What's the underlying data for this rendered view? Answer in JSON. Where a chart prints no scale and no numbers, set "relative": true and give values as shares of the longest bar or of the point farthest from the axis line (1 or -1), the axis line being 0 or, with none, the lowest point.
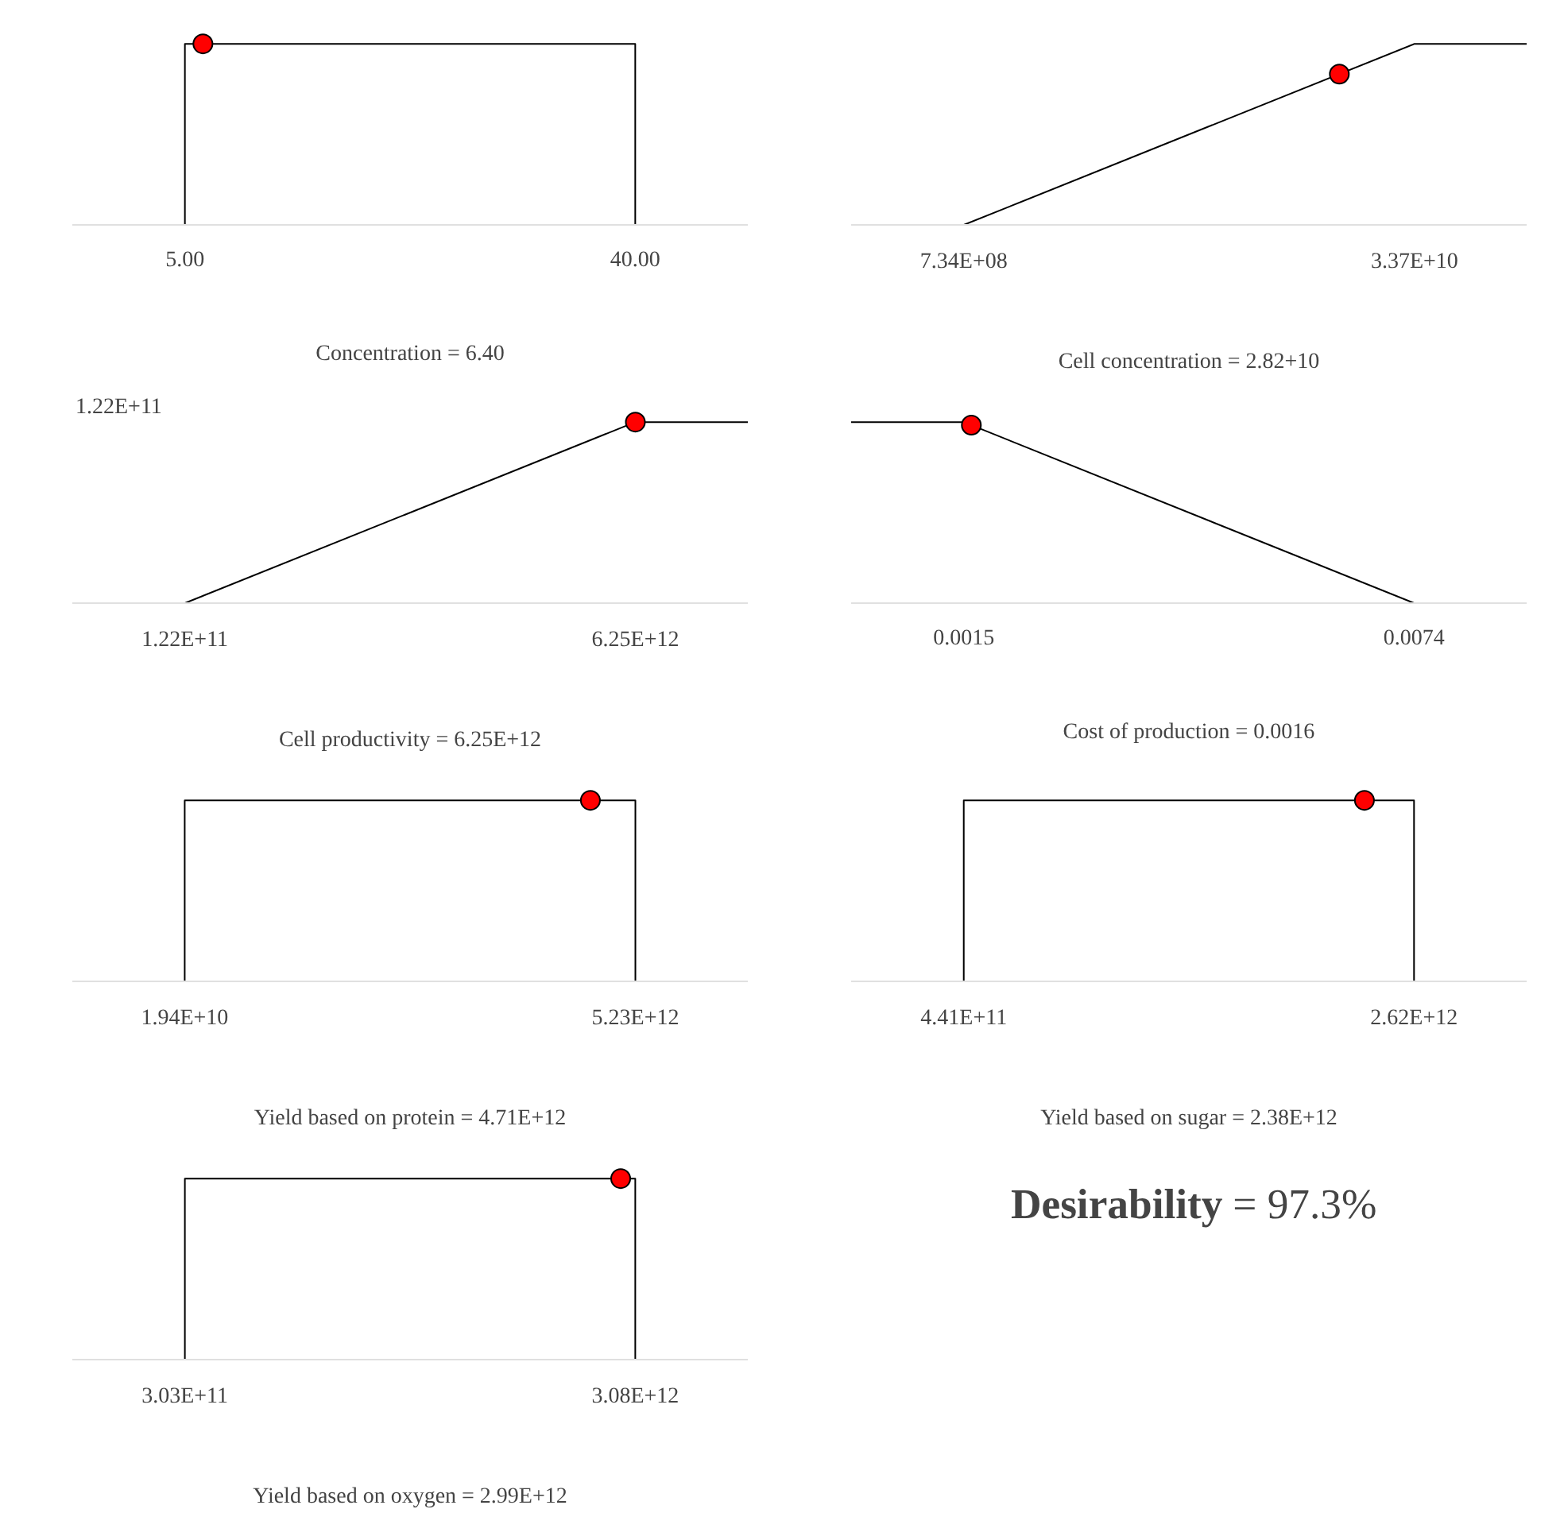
{
  "chart_data": [
    {
      "type": "line",
      "relative": true,
      "tick_labels": "x",
      "xlabel": "Concentration = 6.40",
      "xlim": [
        -3.75,
        48.75
      ],
      "xticks": [
        {
          "value": 5,
          "label": "5.00"
        },
        {
          "value": 40,
          "label": "40.00"
        }
      ],
      "series": [
        {
          "type": "line",
          "color": "#000000",
          "x": [
            -3.75,
            5,
            5,
            40,
            40,
            48.75
          ],
          "values": [
            0,
            0,
            1,
            1,
            0,
            0
          ]
        },
        {
          "type": "scatter",
          "marker": "circle",
          "color": "#ff0000",
          "x": [
            6.4
          ],
          "values": [
            1
          ]
        }
      ]
    },
    {
      "type": "line",
      "relative": true,
      "tick_labels": "x",
      "xlabel": "Cell concentration = 2.82+10",
      "xlim": [
        -7510000000.0,
        41900000000.0
      ],
      "xticks": [
        {
          "value": 734000000.0,
          "label": "7.34E+08"
        },
        {
          "value": 33700000000.0,
          "label": "3.37E+10"
        }
      ],
      "series": [
        {
          "type": "line",
          "color": "#000000",
          "x": [
            -7510000000.0,
            734000000.0,
            33700000000.0,
            41900000000.0
          ],
          "values": [
            0,
            0,
            1,
            1
          ]
        },
        {
          "type": "scatter",
          "marker": "circle",
          "color": "#ff0000",
          "x": [
            28200000000.0
          ],
          "values": [
            0.833
          ]
        }
      ]
    },
    {
      "type": "line",
      "relative": true,
      "tick_labels": "x",
      "xlabel": "Cell productivity = 6.25E+12",
      "annotations": [
        "1.22E+11"
      ],
      "xlim": [
        -1410000000000.0,
        7780000000000.0
      ],
      "xticks": [
        {
          "value": 122000000000.0,
          "label": "1.22E+11"
        },
        {
          "value": 6250000000000.0,
          "label": "6.25E+12"
        }
      ],
      "series": [
        {
          "type": "line",
          "color": "#000000",
          "x": [
            -1410000000000.0,
            122000000000.0,
            6250000000000.0,
            7780000000000.0
          ],
          "values": [
            0,
            0,
            1,
            1
          ]
        },
        {
          "type": "scatter",
          "marker": "circle",
          "color": "#ff0000",
          "x": [
            6250000000000.0
          ],
          "values": [
            1
          ]
        }
      ]
    },
    {
      "type": "line",
      "relative": true,
      "tick_labels": "x",
      "xlabel": "Cost of production = 0.0016",
      "xlim": [
        2.5e-05,
        0.008875
      ],
      "xticks": [
        {
          "value": 0.0015,
          "label": "0.0015"
        },
        {
          "value": 0.0074,
          "label": "0.0074"
        }
      ],
      "series": [
        {
          "type": "line",
          "color": "#000000",
          "x": [
            2.5e-05,
            0.0015,
            0.0074,
            0.008875
          ],
          "values": [
            1,
            1,
            0,
            0
          ]
        },
        {
          "type": "scatter",
          "marker": "circle",
          "color": "#ff0000",
          "x": [
            0.0016
          ],
          "values": [
            0.983
          ]
        }
      ]
    },
    {
      "type": "line",
      "relative": true,
      "tick_labels": "x",
      "xlabel": "Yield based on protein = 4.71E+12",
      "xlim": [
        -1280000000000.0,
        6530000000000.0
      ],
      "xticks": [
        {
          "value": 19400000000.0,
          "label": "1.94E+10"
        },
        {
          "value": 5230000000000.0,
          "label": "5.23E+12"
        }
      ],
      "series": [
        {
          "type": "line",
          "color": "#000000",
          "x": [
            -1280000000000.0,
            19400000000.0,
            19400000000.0,
            5230000000000.0,
            5230000000000.0,
            6530000000000.0
          ],
          "values": [
            0,
            0,
            1,
            1,
            0,
            0
          ]
        },
        {
          "type": "scatter",
          "marker": "circle",
          "color": "#ff0000",
          "x": [
            4710000000000.0
          ],
          "values": [
            1
          ]
        }
      ]
    },
    {
      "type": "line",
      "relative": true,
      "tick_labels": "x",
      "xlabel": "Yield based on sugar = 2.38E+12",
      "xlim": [
        -104000000000.0,
        3165000000000.0
      ],
      "xticks": [
        {
          "value": 441000000000.0,
          "label": "4.41E+11"
        },
        {
          "value": 2620000000000.0,
          "label": "2.62E+12"
        }
      ],
      "series": [
        {
          "type": "line",
          "color": "#000000",
          "x": [
            -104000000000.0,
            441000000000.0,
            441000000000.0,
            2620000000000.0,
            2620000000000.0,
            3165000000000.0
          ],
          "values": [
            0,
            0,
            1,
            1,
            0,
            0
          ]
        },
        {
          "type": "scatter",
          "marker": "circle",
          "color": "#ff0000",
          "x": [
            2380000000000.0
          ],
          "values": [
            1
          ]
        }
      ]
    },
    {
      "type": "line",
      "relative": true,
      "tick_labels": "x",
      "xlabel": "Yield based on oxygen = 2.99E+12",
      "xlim": [
        -391000000000.0,
        3774000000000.0
      ],
      "xticks": [
        {
          "value": 303000000000.0,
          "label": "3.03E+11"
        },
        {
          "value": 3080000000000.0,
          "label": "3.08E+12"
        }
      ],
      "series": [
        {
          "type": "line",
          "color": "#000000",
          "x": [
            -391000000000.0,
            303000000000.0,
            303000000000.0,
            3080000000000.0,
            3080000000000.0,
            3774000000000.0
          ],
          "values": [
            0,
            0,
            1,
            1,
            0,
            0
          ]
        },
        {
          "type": "scatter",
          "marker": "circle",
          "color": "#ff0000",
          "x": [
            2990000000000.0
          ],
          "values": [
            1
          ]
        }
      ]
    },
    {
      "type": "other",
      "title": "Desirability",
      "annotations": [
        "= 97.3%"
      ]
    }
  ]
}
